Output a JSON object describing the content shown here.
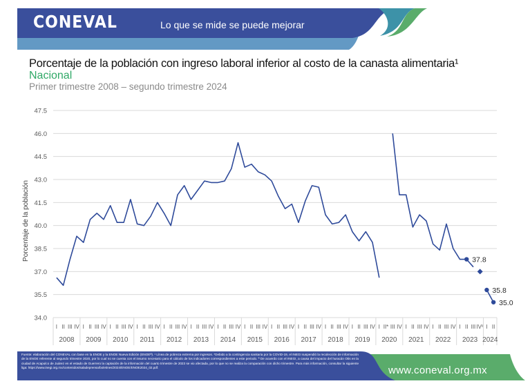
{
  "header": {
    "logo": "CONEVAL",
    "tagline": "Lo que se mide se puede mejorar",
    "colors": {
      "navy": "#3a4f9c",
      "light_blue": "#6399c4",
      "teal": "#3d92a8",
      "green": "#5aac6b"
    }
  },
  "titles": {
    "title": "Porcentaje de la población con ingreso laboral inferior al costo de la canasta alimentaria¹",
    "subtitle": "Nacional",
    "period": "Primer trimestre 2008 – segundo trimestre 2024"
  },
  "chart_data": {
    "type": "line",
    "title": "Porcentaje de la población con ingreso laboral inferior al costo de la canasta alimentaria¹",
    "xlabel": "",
    "ylabel": "Porcentaje de la población",
    "ylim": [
      34.0,
      47.5
    ],
    "yticks": [
      "34.0",
      "35.5",
      "37.0",
      "38.5",
      "40.0",
      "41.5",
      "43.0",
      "44.5",
      "46.0",
      "47.5"
    ],
    "ytick_values": [
      34.0,
      35.5,
      37.0,
      38.5,
      40.0,
      41.5,
      43.0,
      44.5,
      46.0,
      47.5
    ],
    "grid": true,
    "line_color": "#2e4a9a",
    "years": [
      {
        "year": "2008",
        "quarters": [
          "I",
          "II",
          "III",
          "IV"
        ]
      },
      {
        "year": "2009",
        "quarters": [
          "I",
          "II",
          "III",
          "IV"
        ]
      },
      {
        "year": "2010",
        "quarters": [
          "I",
          "II",
          "III",
          "IV"
        ]
      },
      {
        "year": "2011",
        "quarters": [
          "I",
          "II",
          "III",
          "IV"
        ]
      },
      {
        "year": "2012",
        "quarters": [
          "I",
          "II",
          "III",
          "IV"
        ]
      },
      {
        "year": "2013",
        "quarters": [
          "I",
          "II",
          "III",
          "IV"
        ]
      },
      {
        "year": "2014",
        "quarters": [
          "I",
          "II",
          "III",
          "IV"
        ]
      },
      {
        "year": "2015",
        "quarters": [
          "I",
          "II",
          "III",
          "IV"
        ]
      },
      {
        "year": "2016",
        "quarters": [
          "I",
          "II",
          "III",
          "IV"
        ]
      },
      {
        "year": "2017",
        "quarters": [
          "I",
          "II",
          "III",
          "IV"
        ]
      },
      {
        "year": "2018",
        "quarters": [
          "I",
          "II",
          "III",
          "IV"
        ]
      },
      {
        "year": "2019",
        "quarters": [
          "I",
          "II",
          "III",
          "IV"
        ]
      },
      {
        "year": "2020",
        "quarters": [
          "I",
          "II*",
          "III",
          "IV"
        ]
      },
      {
        "year": "2021",
        "quarters": [
          "I",
          "II",
          "III",
          "IV"
        ]
      },
      {
        "year": "2022",
        "quarters": [
          "I",
          "II",
          "III",
          "IV"
        ]
      },
      {
        "year": "2023",
        "quarters": [
          "I",
          "II",
          "III",
          "IVª"
        ]
      },
      {
        "year": "2024",
        "quarters": [
          "I",
          "II"
        ]
      }
    ],
    "series": [
      {
        "name": "Nacional",
        "values": [
          36.6,
          36.1,
          37.8,
          39.3,
          38.9,
          40.4,
          40.8,
          40.4,
          41.3,
          40.2,
          40.2,
          41.7,
          40.1,
          40.0,
          40.6,
          41.5,
          40.8,
          40.0,
          42.0,
          42.6,
          41.7,
          42.3,
          42.9,
          42.8,
          42.8,
          42.9,
          43.7,
          45.4,
          43.8,
          44.0,
          43.5,
          43.3,
          42.9,
          41.9,
          41.1,
          41.4,
          40.2,
          41.6,
          42.6,
          42.5,
          40.7,
          40.1,
          40.2,
          40.7,
          39.6,
          39.0,
          39.6,
          38.9,
          36.6,
          null,
          46.0,
          42.0,
          42.0,
          39.9,
          40.7,
          40.3,
          38.8,
          38.4,
          40.1,
          38.5,
          37.8,
          37.8,
          37.3,
          37.0,
          35.8,
          35.0
        ]
      }
    ],
    "segments": [
      {
        "from": 0,
        "to": 48
      },
      {
        "from": 50,
        "to": 62
      },
      {
        "from": 64,
        "to": 65
      }
    ],
    "markers": [
      {
        "index": 61,
        "shape": "circle",
        "label": "37.8"
      },
      {
        "index": 63,
        "shape": "diamond",
        "label": ""
      },
      {
        "index": 64,
        "shape": "circle",
        "label": "35.8"
      },
      {
        "index": 65,
        "shape": "circle",
        "label": "35.0"
      }
    ]
  },
  "footer": {
    "note": "Fuente: elaboración del CONEVAL con base en la ENOE y la ENOE Nueva Edición (ENOEᴺ). ¹ Línea de pobreza extrema por ingresos. *Debido a la contingencia sanitaria por la COVID-19, el INEGI suspendió la recolección de información de la ENOE referente al segundo trimestre 2020, por lo cual no se cuenta con el insumo necesario para el cálculo de los indicadores correspondientes a este periodo. ª De acuerdo con el INEGI, a causa del impacto del huracán Otis en la ciudad de Acapulco de Juárez en el estado de Guerrero la captación de la información del cuarto trimestre de 2023 se vio afectada, por lo que no se realiza la comparación con dicho trimestre. Para más información, consultar la siguiente liga: https://www.inegi.org.mx/contenidos/saladeprensa/boletines/2024/ENOE/ENOE2024_02.pdf.",
    "website": "www.coneval.org.mx"
  }
}
